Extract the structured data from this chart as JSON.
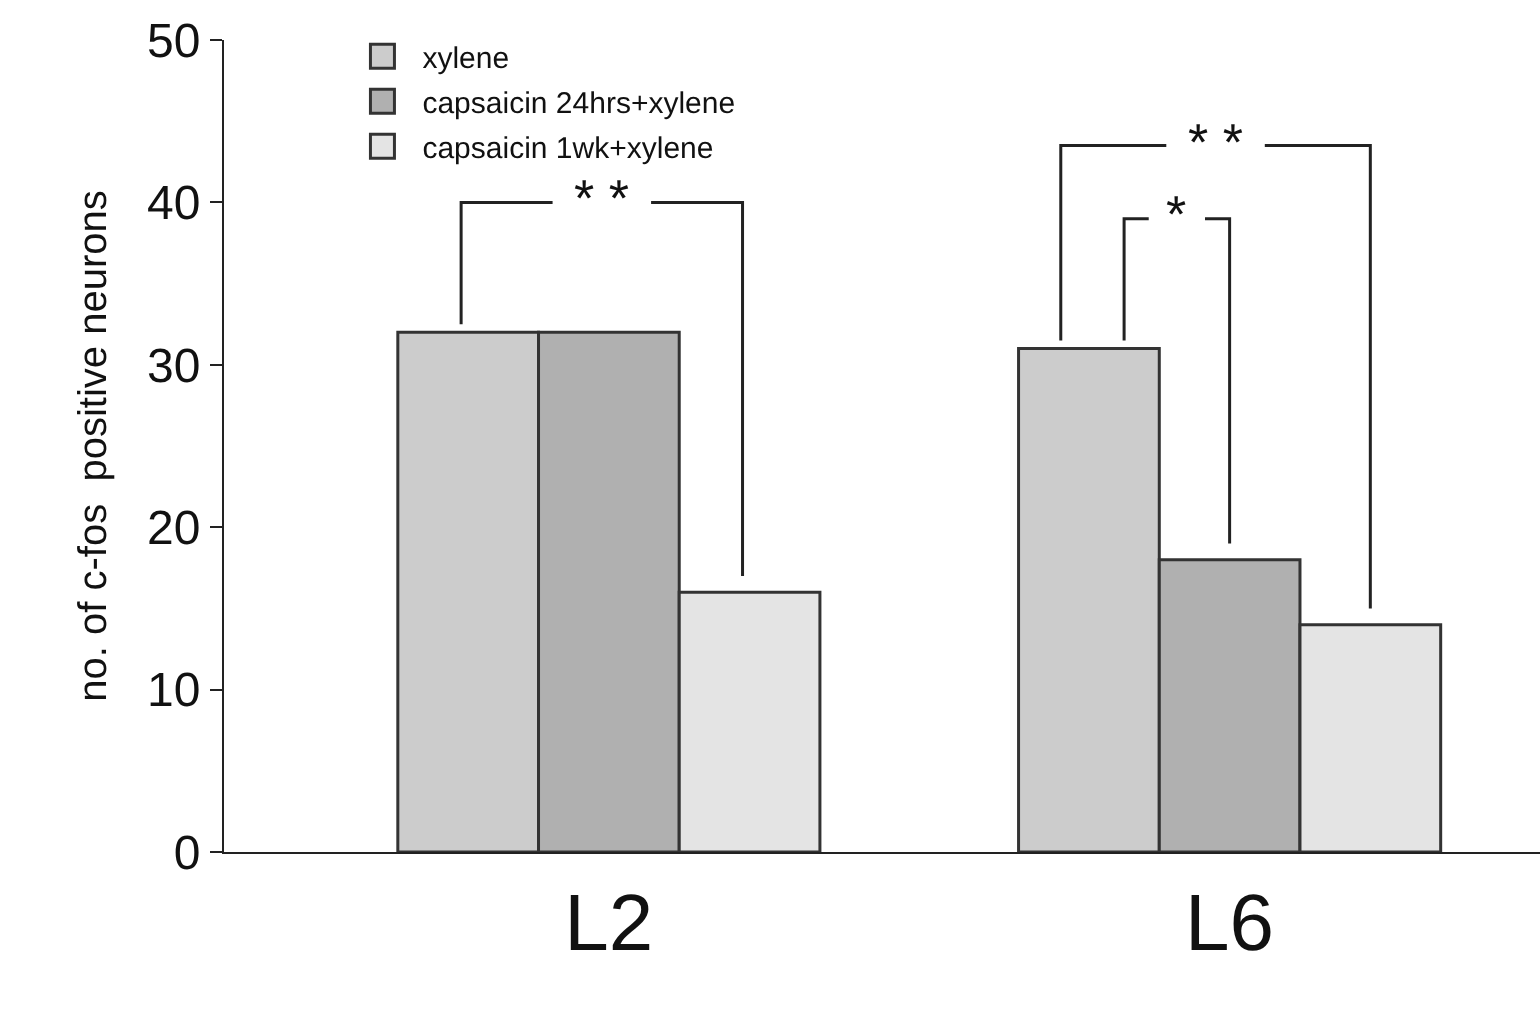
{
  "chart_data": {
    "type": "bar",
    "ylabel": "no. of c-fos  positive neurons",
    "categories": [
      "L2",
      "L6"
    ],
    "series": [
      {
        "name": "xylene",
        "color": "#cccccc",
        "values": [
          32,
          31
        ]
      },
      {
        "name": "capsaicin 24hrs+xylene",
        "color": "#b0b0b0",
        "values": [
          32,
          18
        ]
      },
      {
        "name": "capsaicin 1wk+xylene",
        "color": "#e4e4e4",
        "values": [
          16,
          14
        ]
      }
    ],
    "ylim": [
      0,
      50
    ],
    "yticks": [
      0,
      10,
      20,
      30,
      40,
      50
    ],
    "annotations": [
      "* *",
      "* *",
      "*"
    ],
    "legend": "top left"
  }
}
